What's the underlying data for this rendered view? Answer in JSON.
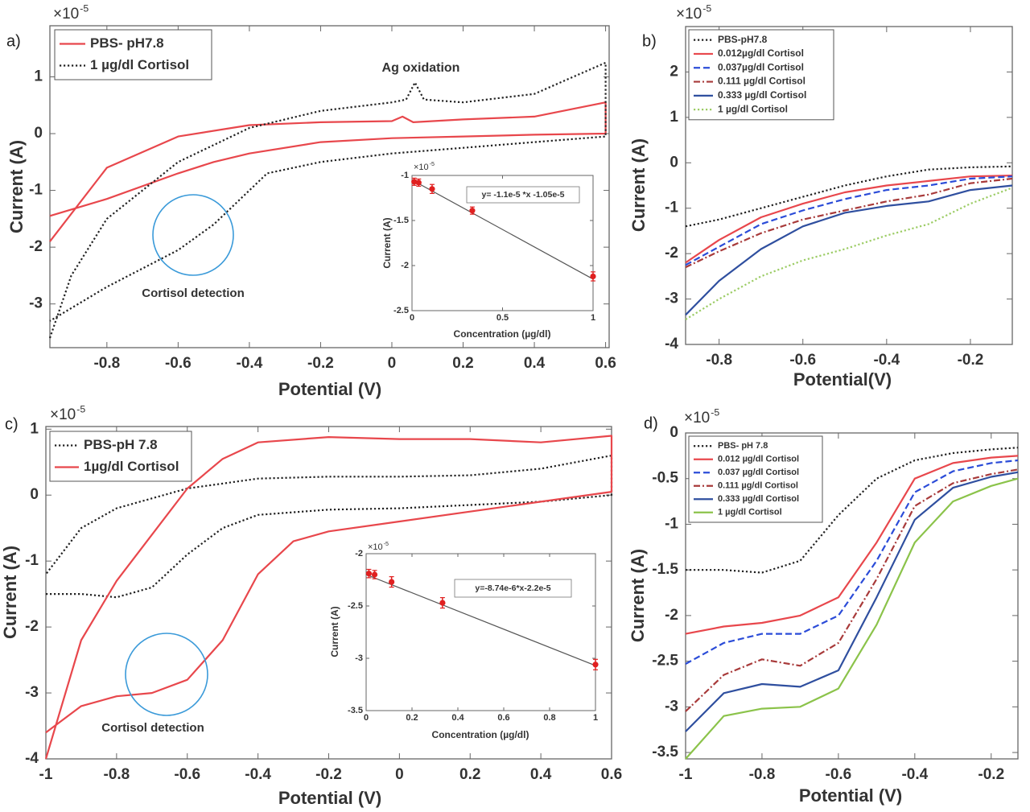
{
  "chart_data": [
    {
      "type": "line",
      "panel_label": "a)",
      "xlabel": "Potential (V)",
      "ylabel": "Current (A)",
      "y_multiplier": {
        "base": "×10",
        "exponent": "-5"
      },
      "xlim": [
        -0.96,
        0.61
      ],
      "ylim": [
        -3.77,
        1.9
      ],
      "xticks": [
        -0.8,
        -0.6,
        -0.4,
        -0.2,
        0,
        0.2,
        0.4,
        0.6
      ],
      "yticks": [
        1,
        0,
        -1,
        -2,
        -3
      ],
      "legend": "upper left",
      "annotations": [
        "Ag oxidation",
        "Cortisol detection"
      ],
      "series": [
        {
          "name": "PBS- pH7.8",
          "color": "#e8474c",
          "dash": "solid",
          "x": [
            -0.96,
            -0.8,
            -0.6,
            -0.4,
            -0.2,
            0,
            0.03,
            0.06,
            0.2,
            0.4,
            0.6,
            0.6,
            0.4,
            0.2,
            0,
            -0.2,
            -0.4,
            -0.5,
            -0.6,
            -0.8,
            -0.96
          ],
          "values": [
            -1.9,
            -0.6,
            -0.05,
            0.15,
            0.2,
            0.22,
            0.3,
            0.2,
            0.25,
            0.3,
            0.55,
            0.0,
            -0.02,
            -0.05,
            -0.08,
            -0.15,
            -0.35,
            -0.5,
            -0.7,
            -1.15,
            -1.45
          ]
        },
        {
          "name": "1 µg/dl Cortisol",
          "color": "#222222",
          "dash": "dotted",
          "x": [
            -0.96,
            -0.9,
            -0.8,
            -0.6,
            -0.4,
            -0.2,
            0,
            0.04,
            0.065,
            0.09,
            0.2,
            0.4,
            0.6,
            0.6,
            0.4,
            0.2,
            0,
            -0.2,
            -0.35,
            -0.4,
            -0.5,
            -0.6,
            -0.8,
            -0.96
          ],
          "values": [
            -3.6,
            -2.5,
            -1.5,
            -0.5,
            0.1,
            0.4,
            0.55,
            0.6,
            0.9,
            0.6,
            0.55,
            0.7,
            1.25,
            -0.05,
            -0.15,
            -0.25,
            -0.35,
            -0.5,
            -0.7,
            -1.0,
            -1.6,
            -2.05,
            -2.7,
            -3.3
          ]
        }
      ],
      "inset": {
        "type": "scatter",
        "xlabel": "Concentration (µg/dl)",
        "ylabel": "Current (A)",
        "y_multiplier": {
          "base": "×10",
          "exponent": "-5"
        },
        "xlim": [
          0,
          1
        ],
        "ylim": [
          -2.5,
          -1
        ],
        "xticks": [
          0,
          0.5,
          1
        ],
        "yticks": [
          -1,
          -1.5,
          -2,
          -2.5
        ],
        "color": "#e02020",
        "x": [
          0.012,
          0.037,
          0.111,
          0.333,
          1
        ],
        "values": [
          -1.07,
          -1.08,
          -1.15,
          -1.39,
          -2.12
        ],
        "errors": [
          0.04,
          0.04,
          0.05,
          0.04,
          0.05
        ],
        "fit": {
          "color": "#555555",
          "x": [
            0,
            1
          ],
          "values": [
            -1.05,
            -2.15
          ]
        },
        "equation": "y= -1.1e-5 *x -1.05e-5"
      }
    },
    {
      "type": "line",
      "panel_label": "b)",
      "xlabel": "Potential(V)",
      "ylabel": "Current (A)",
      "y_multiplier": {
        "base": "×10",
        "exponent": "-5"
      },
      "xlim": [
        -0.88,
        -0.1
      ],
      "ylim": [
        -4,
        3
      ],
      "xticks": [
        -0.8,
        -0.6,
        -0.4,
        -0.2
      ],
      "yticks": [
        2,
        1,
        0,
        -1,
        -2,
        -3,
        -4
      ],
      "legend": "upper left",
      "series": [
        {
          "name": "PBS-pH7.8",
          "color": "#222222",
          "dash": "dotted",
          "x": [
            -0.88,
            -0.8,
            -0.7,
            -0.6,
            -0.5,
            -0.4,
            -0.3,
            -0.2,
            -0.1
          ],
          "values": [
            -1.4,
            -1.25,
            -1.0,
            -0.75,
            -0.5,
            -0.3,
            -0.15,
            -0.1,
            -0.08
          ]
        },
        {
          "name": "0.012µg/dl Cortisol",
          "color": "#e8474c",
          "dash": "solid",
          "x": [
            -0.88,
            -0.8,
            -0.7,
            -0.6,
            -0.5,
            -0.4,
            -0.3,
            -0.2,
            -0.1
          ],
          "values": [
            -2.2,
            -1.7,
            -1.2,
            -0.9,
            -0.65,
            -0.5,
            -0.4,
            -0.3,
            -0.28
          ]
        },
        {
          "name": "0.037µg/dl Cortisol",
          "color": "#2b4cd8",
          "dash": "dashed",
          "x": [
            -0.88,
            -0.8,
            -0.7,
            -0.6,
            -0.5,
            -0.4,
            -0.3,
            -0.2,
            -0.1
          ],
          "values": [
            -2.25,
            -1.85,
            -1.35,
            -1.05,
            -0.8,
            -0.6,
            -0.5,
            -0.35,
            -0.3
          ]
        },
        {
          "name": "0.111 µg/dl Cortisol",
          "color": "#a83a3a",
          "dash": "dashdot",
          "x": [
            -0.88,
            -0.8,
            -0.7,
            -0.6,
            -0.5,
            -0.4,
            -0.3,
            -0.2,
            -0.1
          ],
          "values": [
            -2.3,
            -1.95,
            -1.55,
            -1.25,
            -1.05,
            -0.85,
            -0.7,
            -0.45,
            -0.35
          ]
        },
        {
          "name": "0.333 µg/dl Cortisol",
          "color": "#2f4f9f",
          "dash": "solid",
          "x": [
            -0.88,
            -0.8,
            -0.7,
            -0.6,
            -0.5,
            -0.4,
            -0.3,
            -0.2,
            -0.1
          ],
          "values": [
            -3.35,
            -2.6,
            -1.9,
            -1.4,
            -1.1,
            -0.95,
            -0.85,
            -0.6,
            -0.5
          ]
        },
        {
          "name": "1 µg/dl Cortisol",
          "color": "#9ccc65",
          "dash": "dotted",
          "x": [
            -0.88,
            -0.8,
            -0.7,
            -0.6,
            -0.5,
            -0.4,
            -0.3,
            -0.2,
            -0.1
          ],
          "values": [
            -3.45,
            -3.0,
            -2.5,
            -2.15,
            -1.9,
            -1.6,
            -1.35,
            -0.9,
            -0.55
          ]
        }
      ]
    },
    {
      "type": "line",
      "panel_label": "c)",
      "xlabel": "Potential (V)",
      "ylabel": "Current (A)",
      "y_multiplier": {
        "base": "×10",
        "exponent": "-5"
      },
      "xlim": [
        -1,
        0.6
      ],
      "ylim": [
        -4,
        1.04
      ],
      "xticks": [
        -1,
        -0.8,
        -0.6,
        -0.4,
        -0.2,
        0,
        0.2,
        0.4,
        0.6
      ],
      "yticks": [
        1,
        0,
        -1,
        -2,
        -3,
        -4
      ],
      "legend": "upper left",
      "annotations": [
        "Cortisol detection"
      ],
      "series": [
        {
          "name": "PBS-pH 7.8",
          "color": "#222222",
          "dash": "dotted",
          "x": [
            -1,
            -0.9,
            -0.8,
            -0.7,
            -0.6,
            -0.5,
            -0.4,
            -0.2,
            0,
            0.2,
            0.4,
            0.6,
            0.6,
            0.4,
            0.2,
            0,
            -0.2,
            -0.4,
            -0.6,
            -0.8,
            -0.9,
            -1
          ],
          "values": [
            -1.5,
            -1.5,
            -1.55,
            -1.4,
            -0.9,
            -0.5,
            -0.3,
            -0.22,
            -0.2,
            -0.15,
            -0.1,
            0.0,
            0.6,
            0.4,
            0.3,
            0.28,
            0.28,
            0.25,
            0.1,
            -0.2,
            -0.5,
            -1.2
          ]
        },
        {
          "name": "1µg/dl Cortisol",
          "color": "#e8474c",
          "dash": "solid",
          "x": [
            -1,
            -0.9,
            -0.8,
            -0.7,
            -0.6,
            -0.5,
            -0.4,
            -0.3,
            -0.2,
            0,
            0.2,
            0.4,
            0.6,
            0.6,
            0.4,
            0.2,
            0,
            -0.2,
            -0.4,
            -0.5,
            -0.6,
            -0.7,
            -0.8,
            -0.9,
            -1
          ],
          "values": [
            -3.6,
            -3.2,
            -3.05,
            -3.0,
            -2.8,
            -2.2,
            -1.2,
            -0.7,
            -0.55,
            -0.4,
            -0.25,
            -0.1,
            0.05,
            0.9,
            0.8,
            0.85,
            0.85,
            0.88,
            0.8,
            0.55,
            0.1,
            -0.6,
            -1.3,
            -2.2,
            -4.0
          ]
        }
      ],
      "inset": {
        "type": "scatter",
        "xlabel": "Concentration (µg/dl)",
        "ylabel": "Current (A)",
        "y_multiplier": {
          "base": "×10",
          "exponent": "-5"
        },
        "xlim": [
          0,
          1
        ],
        "ylim": [
          -3.5,
          -2
        ],
        "xticks": [
          0,
          0.2,
          0.4,
          0.6,
          0.8,
          1
        ],
        "yticks": [
          -2,
          -2.5,
          -3,
          -3.5
        ],
        "color": "#e02020",
        "x": [
          0.012,
          0.037,
          0.111,
          0.333,
          1
        ],
        "values": [
          -2.19,
          -2.2,
          -2.27,
          -2.47,
          -3.06
        ],
        "errors": [
          0.04,
          0.04,
          0.05,
          0.05,
          0.05
        ],
        "fit": {
          "color": "#555555",
          "x": [
            0,
            1
          ],
          "values": [
            -2.2,
            -3.07
          ]
        },
        "equation": "y=-8.74e-6*x-2.2e-5"
      }
    },
    {
      "type": "line",
      "panel_label": "d)",
      "xlabel": "Potential (V)",
      "ylabel": "Current (A)",
      "y_multiplier": {
        "base": "×10",
        "exponent": "-5"
      },
      "xlim": [
        -1,
        -0.13
      ],
      "ylim": [
        -3.57,
        0
      ],
      "xticks": [
        -1,
        -0.8,
        -0.6,
        -0.4,
        -0.2
      ],
      "yticks": [
        0,
        -0.5,
        -1,
        -1.5,
        -2,
        -2.5,
        -3,
        -3.5
      ],
      "legend": "upper left",
      "series": [
        {
          "name": "PBS- pH 7.8",
          "color": "#222222",
          "dash": "dotted",
          "x": [
            -1,
            -0.9,
            -0.8,
            -0.7,
            -0.6,
            -0.5,
            -0.4,
            -0.3,
            -0.2,
            -0.13
          ],
          "values": [
            -1.5,
            -1.5,
            -1.53,
            -1.4,
            -0.9,
            -0.5,
            -0.3,
            -0.22,
            -0.18,
            -0.16
          ]
        },
        {
          "name": "0.012 µg/dl Cortisol",
          "color": "#e8474c",
          "dash": "solid",
          "x": [
            -1,
            -0.9,
            -0.8,
            -0.7,
            -0.6,
            -0.5,
            -0.4,
            -0.3,
            -0.2,
            -0.13
          ],
          "values": [
            -2.2,
            -2.12,
            -2.08,
            -2.0,
            -1.8,
            -1.2,
            -0.5,
            -0.33,
            -0.27,
            -0.25
          ]
        },
        {
          "name": "0.037 µg/dl Cortisol",
          "color": "#2b4cd8",
          "dash": "dashed",
          "x": [
            -1,
            -0.9,
            -0.8,
            -0.7,
            -0.6,
            -0.5,
            -0.4,
            -0.3,
            -0.2,
            -0.13
          ],
          "values": [
            -2.53,
            -2.3,
            -2.2,
            -2.2,
            -2.0,
            -1.4,
            -0.65,
            -0.42,
            -0.33,
            -0.3
          ]
        },
        {
          "name": "0.111 µg/dl Cortisol",
          "color": "#a83a3a",
          "dash": "dashdot",
          "x": [
            -1,
            -0.9,
            -0.8,
            -0.7,
            -0.6,
            -0.5,
            -0.4,
            -0.3,
            -0.2,
            -0.13
          ],
          "values": [
            -3.05,
            -2.65,
            -2.48,
            -2.55,
            -2.3,
            -1.6,
            -0.8,
            -0.55,
            -0.45,
            -0.4
          ]
        },
        {
          "name": "0.333 µg/dl Cortisol",
          "color": "#2f4f9f",
          "dash": "solid",
          "x": [
            -1,
            -0.9,
            -0.8,
            -0.7,
            -0.6,
            -0.5,
            -0.4,
            -0.3,
            -0.2,
            -0.13
          ],
          "values": [
            -3.27,
            -2.85,
            -2.75,
            -2.78,
            -2.6,
            -1.8,
            -0.95,
            -0.6,
            -0.48,
            -0.43
          ]
        },
        {
          "name": "1 µg/dl Cortisol",
          "color": "#8bc34a",
          "dash": "solid",
          "x": [
            -1,
            -0.9,
            -0.8,
            -0.7,
            -0.6,
            -0.5,
            -0.4,
            -0.3,
            -0.2,
            -0.13
          ],
          "values": [
            -3.57,
            -3.1,
            -3.02,
            -3.0,
            -2.8,
            -2.1,
            -1.2,
            -0.75,
            -0.58,
            -0.5
          ]
        }
      ]
    }
  ]
}
